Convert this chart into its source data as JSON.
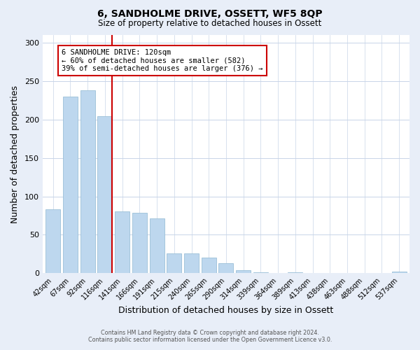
{
  "title": "6, SANDHOLME DRIVE, OSSETT, WF5 8QP",
  "subtitle": "Size of property relative to detached houses in Ossett",
  "xlabel": "Distribution of detached houses by size in Ossett",
  "ylabel": "Number of detached properties",
  "bar_labels": [
    "42sqm",
    "67sqm",
    "92sqm",
    "116sqm",
    "141sqm",
    "166sqm",
    "191sqm",
    "215sqm",
    "240sqm",
    "265sqm",
    "290sqm",
    "314sqm",
    "339sqm",
    "364sqm",
    "389sqm",
    "413sqm",
    "438sqm",
    "463sqm",
    "488sqm",
    "512sqm",
    "537sqm"
  ],
  "bar_values": [
    83,
    230,
    238,
    204,
    80,
    79,
    71,
    26,
    26,
    20,
    13,
    4,
    1,
    0,
    1,
    0,
    0,
    0,
    0,
    0,
    2
  ],
  "bar_color": "#bdd7ee",
  "bar_edge_color": "#9bbfd8",
  "vline_color": "#cc0000",
  "vline_x_index": 3,
  "annotation_box_text": "6 SANDHOLME DRIVE: 120sqm\n← 60% of detached houses are smaller (582)\n39% of semi-detached houses are larger (376) →",
  "ylim": [
    0,
    310
  ],
  "yticks": [
    0,
    50,
    100,
    150,
    200,
    250,
    300
  ],
  "footer_line1": "Contains HM Land Registry data © Crown copyright and database right 2024.",
  "footer_line2": "Contains public sector information licensed under the Open Government Licence v3.0.",
  "bg_color": "#e8eef8",
  "plot_bg_color": "#ffffff",
  "grid_color": "#c8d4e8"
}
